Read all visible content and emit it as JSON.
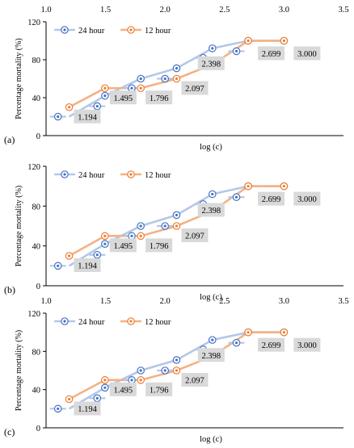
{
  "colors": {
    "series_24": "#4472c4",
    "series_24_line": "#b4c7e7",
    "series_12": "#ed7d31",
    "series_12_line": "#f4b183",
    "label_box": "#d9d9d9",
    "axis": "#000000"
  },
  "chart_data": [
    {
      "type": "line",
      "panel_label": "(a)",
      "top_axis_ticks": [
        "1.0",
        "1.5",
        "2.0",
        "2.5",
        "3.0",
        "3.5"
      ],
      "xlabel": "log (c)",
      "ylabel": "Percentage mortality (%)",
      "xlim": [
        1.0,
        3.5
      ],
      "ylim": [
        0,
        120
      ],
      "yticks": [
        "0",
        "40",
        "80",
        "120"
      ],
      "grid": false,
      "legend_position": "top-left",
      "series": [
        {
          "name": "24 hour",
          "x": [
            1.194,
            1.495,
            1.796,
            2.097,
            2.398,
            2.699,
            3.0
          ],
          "y": [
            20,
            42,
            60,
            71,
            92,
            100,
            100
          ],
          "x_err": 0.05
        },
        {
          "name": "12 hour",
          "x": [
            1.194,
            1.495,
            1.796,
            2.097,
            2.398,
            2.699,
            3.0
          ],
          "y": [
            30,
            50,
            50,
            60,
            75,
            100,
            100
          ],
          "x_err": 0
        }
      ],
      "extra_24_points": [
        {
          "x": 1.43,
          "y": 31
        },
        {
          "x": 1.72,
          "y": 50
        },
        {
          "x": 2.0,
          "y": 60
        },
        {
          "x": 2.32,
          "y": 82
        },
        {
          "x": 2.6,
          "y": 89
        }
      ],
      "data_labels": [
        "1.194",
        "1.495",
        "1.796",
        "2.097",
        "2.398",
        "2.699",
        "3.000"
      ]
    },
    {
      "type": "line",
      "panel_label": "(b)",
      "top_axis_ticks": [],
      "xlabel": "log (c)",
      "ylabel": "Percentage mortality (%)",
      "xlim": [
        1.0,
        3.5
      ],
      "ylim": [
        0,
        120
      ],
      "yticks": [
        "0",
        "40",
        "80",
        "120"
      ],
      "grid": false,
      "legend_position": "top-left",
      "series": [
        {
          "name": "24 hour",
          "x": [
            1.194,
            1.495,
            1.796,
            2.097,
            2.398,
            2.699,
            3.0
          ],
          "y": [
            20,
            42,
            60,
            71,
            92,
            100,
            100
          ],
          "x_err": 0.05
        },
        {
          "name": "12 hour",
          "x": [
            1.194,
            1.495,
            1.796,
            2.097,
            2.398,
            2.699,
            3.0
          ],
          "y": [
            30,
            50,
            50,
            60,
            75,
            100,
            100
          ],
          "x_err": 0
        }
      ],
      "extra_24_points": [
        {
          "x": 1.43,
          "y": 31
        },
        {
          "x": 1.72,
          "y": 50
        },
        {
          "x": 2.0,
          "y": 60
        },
        {
          "x": 2.32,
          "y": 82
        },
        {
          "x": 2.6,
          "y": 89
        }
      ],
      "data_labels": [
        "1.194",
        "1.495",
        "1.796",
        "2.097",
        "2.398",
        "2.699",
        "3.000"
      ]
    },
    {
      "type": "line",
      "panel_label": "(c)",
      "top_axis_ticks": [
        "1.0",
        "1.5",
        "2.0",
        "2.5",
        "3.0",
        "3.5"
      ],
      "xlabel": "log (c)",
      "ylabel": "Percentage mortality (%)",
      "xlim": [
        1.0,
        3.5
      ],
      "ylim": [
        0,
        120
      ],
      "yticks": [
        "0",
        "40",
        "80",
        "120"
      ],
      "grid": false,
      "legend_position": "top-left",
      "series": [
        {
          "name": "24 hour",
          "x": [
            1.194,
            1.495,
            1.796,
            2.097,
            2.398,
            2.699,
            3.0
          ],
          "y": [
            20,
            42,
            60,
            71,
            92,
            100,
            100
          ],
          "x_err": 0.05
        },
        {
          "name": "12 hour",
          "x": [
            1.194,
            1.495,
            1.796,
            2.097,
            2.398,
            2.699,
            3.0
          ],
          "y": [
            30,
            50,
            50,
            60,
            75,
            100,
            100
          ],
          "x_err": 0
        }
      ],
      "extra_24_points": [
        {
          "x": 1.43,
          "y": 31
        },
        {
          "x": 1.72,
          "y": 50
        },
        {
          "x": 2.0,
          "y": 60
        },
        {
          "x": 2.32,
          "y": 82
        },
        {
          "x": 2.6,
          "y": 89
        }
      ],
      "data_labels": [
        "1.194",
        "1.495",
        "1.796",
        "2.097",
        "2.398",
        "2.699",
        "3.000"
      ]
    }
  ]
}
